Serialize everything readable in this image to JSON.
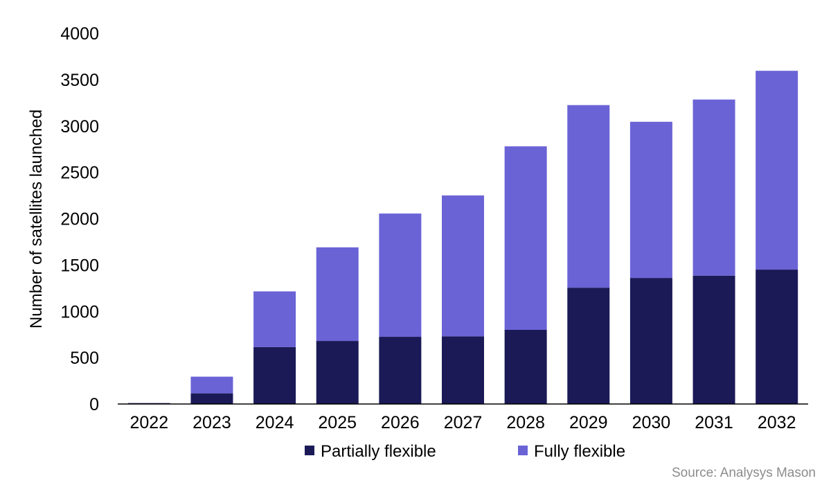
{
  "chart_data": {
    "type": "bar",
    "stacked": true,
    "categories": [
      "2022",
      "2023",
      "2024",
      "2025",
      "2026",
      "2027",
      "2028",
      "2029",
      "2030",
      "2031",
      "2032"
    ],
    "series": [
      {
        "name": "Partially flexible",
        "color": "#1b1a57",
        "values": [
          10,
          115,
          615,
          680,
          725,
          730,
          800,
          1255,
          1360,
          1385,
          1450
        ]
      },
      {
        "name": "Fully flexible",
        "color": "#6a63d6",
        "values": [
          0,
          180,
          600,
          1010,
          1330,
          1520,
          1980,
          1970,
          1685,
          1900,
          2145
        ]
      }
    ],
    "ylabel": "Number of satellites launched",
    "xlabel": "",
    "ylim": [
      0,
      4000
    ],
    "yticks": [
      0,
      500,
      1000,
      1500,
      2000,
      2500,
      3000,
      3500,
      4000
    ],
    "grid": false,
    "legend_position": "bottom",
    "source": "Source: Analysys Mason"
  }
}
